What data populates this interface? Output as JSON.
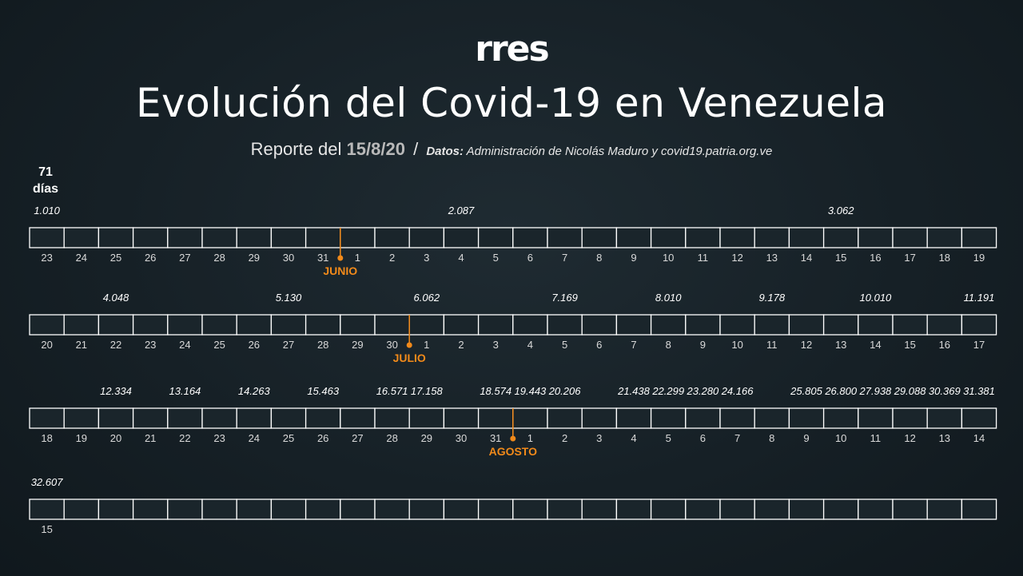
{
  "header": {
    "logo": "rres",
    "title": "Evolución del Covid-19 en Venezuela",
    "report_prefix": "Reporte del",
    "report_date": "15/8/20",
    "separator": "/",
    "source_label": "Datos:",
    "source_text": "Administración de Nicolás Maduro y covid19.patria.org.ve"
  },
  "days_counter": {
    "value": "71",
    "unit": "días"
  },
  "colors": {
    "highlight_start": "#f08a1c",
    "highlight_end": "#fde1c2",
    "month_marker": "#f28a1a",
    "cell_border": "#ffffff"
  },
  "chart_data": {
    "type": "table",
    "title": "Evolución del Covid-19 en Venezuela",
    "rows": [
      {
        "days": [
          "23",
          "24",
          "25",
          "26",
          "27",
          "28",
          "29",
          "30",
          "31",
          "1",
          "2",
          "3",
          "4",
          "5",
          "6",
          "7",
          "8",
          "9",
          "10",
          "11",
          "12",
          "13",
          "14",
          "15",
          "16",
          "17",
          "18",
          "19"
        ],
        "highlights": [
          {
            "index": 0,
            "label": "1.010"
          },
          {
            "index": 12,
            "label": "2.087"
          },
          {
            "index": 23,
            "label": "3.062"
          }
        ],
        "month_marker": {
          "after_index": 8,
          "label": "JUNIO"
        }
      },
      {
        "days": [
          "20",
          "21",
          "22",
          "23",
          "24",
          "25",
          "26",
          "27",
          "28",
          "29",
          "30",
          "1",
          "2",
          "3",
          "4",
          "5",
          "6",
          "7",
          "8",
          "9",
          "10",
          "11",
          "12",
          "13",
          "14",
          "15",
          "16",
          "17"
        ],
        "highlights": [
          {
            "index": 2,
            "label": "4.048"
          },
          {
            "index": 7,
            "label": "5.130"
          },
          {
            "index": 11,
            "label": "6.062"
          },
          {
            "index": 15,
            "label": "7.169"
          },
          {
            "index": 18,
            "label": "8.010"
          },
          {
            "index": 21,
            "label": "9.178"
          },
          {
            "index": 24,
            "label": "10.010"
          },
          {
            "index": 27,
            "label": "11.191"
          }
        ],
        "month_marker": {
          "after_index": 10,
          "label": "JULIO"
        }
      },
      {
        "days": [
          "18",
          "19",
          "20",
          "21",
          "22",
          "23",
          "24",
          "25",
          "26",
          "27",
          "28",
          "29",
          "30",
          "31",
          "1",
          "2",
          "3",
          "4",
          "5",
          "6",
          "7",
          "8",
          "9",
          "10",
          "11",
          "12",
          "13",
          "14"
        ],
        "highlights": [
          {
            "index": 2,
            "label": "12.334"
          },
          {
            "index": 4,
            "label": "13.164"
          },
          {
            "index": 6,
            "label": "14.263"
          },
          {
            "index": 8,
            "label": "15.463"
          },
          {
            "index": 10,
            "label": "16.571"
          },
          {
            "index": 11,
            "label": "17.158"
          },
          {
            "index": 13,
            "label": "18.574"
          },
          {
            "index": 14,
            "label": "19.443"
          },
          {
            "index": 15,
            "label": "20.206"
          },
          {
            "index": 17,
            "label": "21.438"
          },
          {
            "index": 18,
            "label": "22.299"
          },
          {
            "index": 19,
            "label": "23.280"
          },
          {
            "index": 20,
            "label": "24.166"
          },
          {
            "index": 22,
            "label": "25.805"
          },
          {
            "index": 23,
            "label": "26.800"
          },
          {
            "index": 24,
            "label": "27.938"
          },
          {
            "index": 25,
            "label": "29.088"
          },
          {
            "index": 26,
            "label": "30.369"
          },
          {
            "index": 27,
            "label": "31.381"
          }
        ],
        "month_marker": {
          "after_index": 13,
          "label": "AGOSTO"
        }
      },
      {
        "days": [
          "15"
        ],
        "highlights": [
          {
            "index": 0,
            "label": "32.607"
          }
        ],
        "month_marker": null
      }
    ]
  }
}
